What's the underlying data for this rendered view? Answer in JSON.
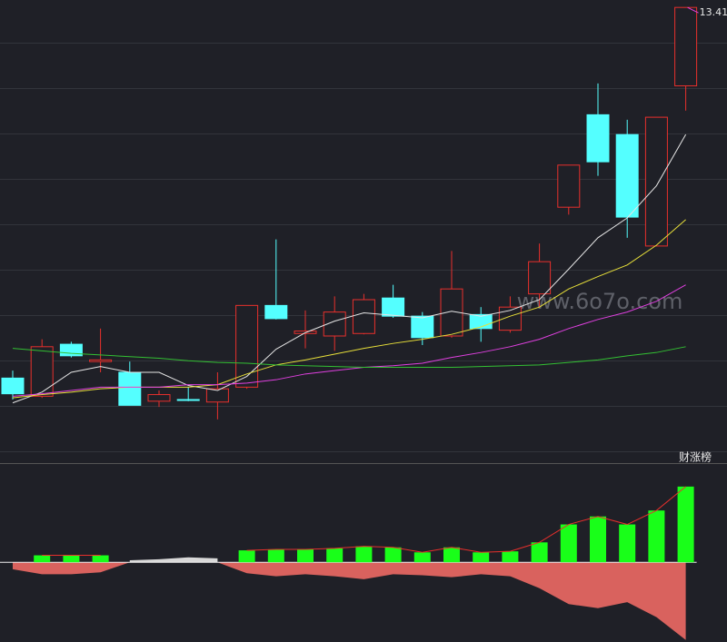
{
  "chart_data": [
    {
      "type": "candlestick",
      "watermark": "www.6o7o.com",
      "up_color": "#e8302c",
      "down_color": "#54ffff",
      "open": [
        8.92,
        8.7,
        9.33,
        9.12,
        8.99,
        8.64,
        8.66,
        8.63,
        8.81,
        9.8,
        9.46,
        9.43,
        9.46,
        9.89,
        9.67,
        9.43,
        9.69,
        9.5,
        9.94,
        10.99,
        12.11,
        11.87,
        10.52,
        12.46
      ],
      "high": [
        9.01,
        9.39,
        9.36,
        9.52,
        9.12,
        8.77,
        8.81,
        8.99,
        9.8,
        10.6,
        9.74,
        9.91,
        9.94,
        10.05,
        9.72,
        10.46,
        9.78,
        9.91,
        10.55,
        11.5,
        12.49,
        12.05,
        12.08,
        13.41
      ],
      "low": [
        8.66,
        8.68,
        9.17,
        8.99,
        8.59,
        8.57,
        8.64,
        8.42,
        8.79,
        9.63,
        9.28,
        9.25,
        9.45,
        9.65,
        9.32,
        9.41,
        9.36,
        9.47,
        9.78,
        10.9,
        11.37,
        10.62,
        10.52,
        12.16
      ],
      "close": [
        8.73,
        9.3,
        9.19,
        9.14,
        8.59,
        8.72,
        8.65,
        8.79,
        9.8,
        9.64,
        9.49,
        9.72,
        9.87,
        9.67,
        9.41,
        10.0,
        9.52,
        9.78,
        10.33,
        11.5,
        11.54,
        10.87,
        12.08,
        13.41
      ],
      "series": [
        {
          "color": "#e6e6e6",
          "values": [
            8.62,
            8.75,
            8.99,
            9.06,
            8.99,
            8.99,
            8.83,
            8.77,
            8.94,
            9.27,
            9.47,
            9.61,
            9.71,
            9.68,
            9.65,
            9.73,
            9.67,
            9.74,
            9.87,
            10.24,
            10.62,
            10.86,
            11.25,
            11.87
          ]
        },
        {
          "color": "#e8e03a",
          "values": [
            8.68,
            8.72,
            8.75,
            8.79,
            8.81,
            8.81,
            8.81,
            8.84,
            8.97,
            9.08,
            9.14,
            9.21,
            9.28,
            9.34,
            9.39,
            9.45,
            9.54,
            9.67,
            9.78,
            10.0,
            10.15,
            10.29,
            10.53,
            10.84
          ]
        },
        {
          "color": "#e040e0",
          "values": [
            8.7,
            8.73,
            8.77,
            8.81,
            8.81,
            8.81,
            8.84,
            8.84,
            8.86,
            8.9,
            8.97,
            9.01,
            9.05,
            9.07,
            9.1,
            9.17,
            9.23,
            9.3,
            9.39,
            9.52,
            9.63,
            9.72,
            9.85,
            10.05
          ]
        },
        {
          "color": "#33c033",
          "values": [
            9.28,
            9.25,
            9.22,
            9.2,
            9.18,
            9.16,
            9.13,
            9.11,
            9.1,
            9.08,
            9.07,
            9.06,
            9.05,
            9.05,
            9.05,
            9.05,
            9.06,
            9.07,
            9.08,
            9.11,
            9.14,
            9.19,
            9.23,
            9.3
          ]
        }
      ],
      "ylim": [
        8.0,
        13.5
      ]
    },
    {
      "type": "bar",
      "title": "财涨榜",
      "line_color": "#e8302c",
      "series": [
        {
          "kind": "bar",
          "color": "#19ff19",
          "values": [
            null,
            7,
            7,
            7,
            null,
            null,
            null,
            null,
            12,
            13,
            13,
            14,
            16,
            15,
            10,
            15,
            10,
            11,
            20,
            38,
            46,
            38,
            52,
            76
          ]
        },
        {
          "kind": "area",
          "color": "#d8d8d8",
          "values": [
            null,
            null,
            null,
            null,
            2,
            3,
            5,
            4,
            null,
            null,
            null,
            null,
            null,
            null,
            null,
            null,
            null,
            null,
            null,
            null,
            null,
            null,
            null,
            null
          ]
        },
        {
          "kind": "area",
          "color": "#d9625e",
          "values": [
            -7,
            -12,
            -12,
            -10,
            0,
            0,
            0,
            0,
            -11,
            -14,
            -12,
            -14,
            -17,
            -12,
            -13,
            -15,
            -12,
            -14,
            -26,
            -42,
            -46,
            -40,
            -55,
            -78
          ]
        }
      ],
      "ylim": [
        -80,
        95
      ]
    }
  ]
}
